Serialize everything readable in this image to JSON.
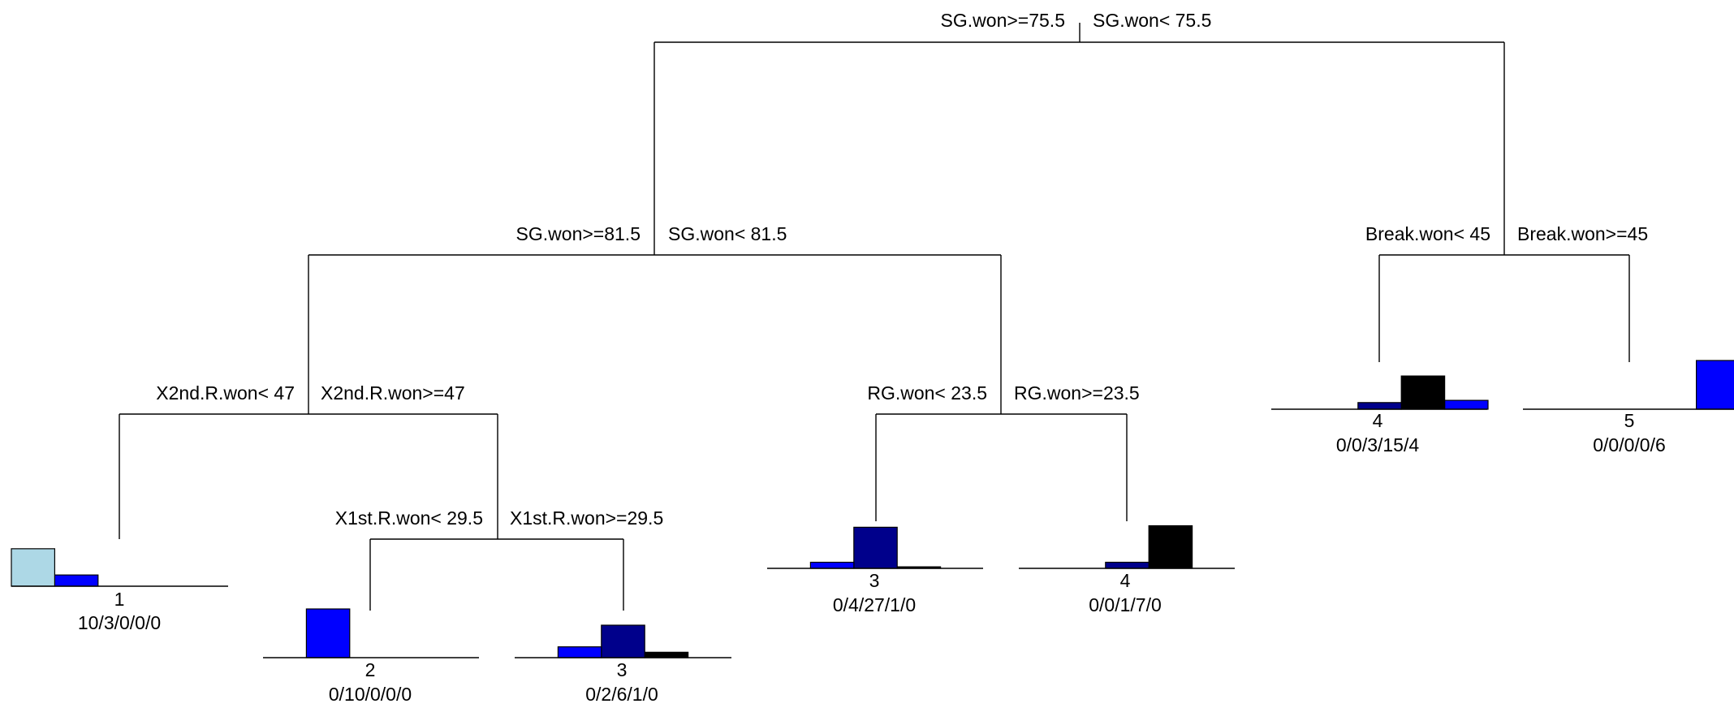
{
  "palette": {
    "class_colors": [
      "#add8e6",
      "#0000ff",
      "#00008b",
      "#000000",
      "#0000ff"
    ],
    "line": "#000000",
    "background": "#ffffff"
  },
  "splits": [
    {
      "id": "root",
      "left_label": "SG.won>=75.5",
      "right_label": "SG.won< 75.5"
    },
    {
      "id": "n2",
      "left_label": "SG.won>=81.5",
      "right_label": "SG.won< 81.5"
    },
    {
      "id": "n3",
      "left_label": "Break.won< 45",
      "right_label": "Break.won>=45"
    },
    {
      "id": "n4",
      "left_label": "X2nd.R.won< 47",
      "right_label": "X2nd.R.won>=47"
    },
    {
      "id": "n5",
      "left_label": "RG.won< 23.5",
      "right_label": "RG.won>=23.5"
    },
    {
      "id": "n9",
      "left_label": "X1st.R.won< 29.5",
      "right_label": "X1st.R.won>=29.5"
    }
  ],
  "leaves": [
    {
      "id": "L1",
      "class": "1",
      "counts_label": "10/3/0/0/0",
      "counts": [
        10,
        3,
        0,
        0,
        0
      ]
    },
    {
      "id": "L2",
      "class": "2",
      "counts_label": "0/10/0/0/0",
      "counts": [
        0,
        10,
        0,
        0,
        0
      ]
    },
    {
      "id": "L3",
      "class": "3",
      "counts_label": "0/2/6/1/0",
      "counts": [
        0,
        2,
        6,
        1,
        0
      ]
    },
    {
      "id": "L4",
      "class": "3",
      "counts_label": "0/4/27/1/0",
      "counts": [
        0,
        4,
        27,
        1,
        0
      ]
    },
    {
      "id": "L5",
      "class": "4",
      "counts_label": "0/0/1/7/0",
      "counts": [
        0,
        0,
        1,
        7,
        0
      ]
    },
    {
      "id": "L6",
      "class": "4",
      "counts_label": "0/0/3/15/4",
      "counts": [
        0,
        0,
        3,
        15,
        4
      ]
    },
    {
      "id": "L7",
      "class": "5",
      "counts_label": "0/0/0/0/6",
      "counts": [
        0,
        0,
        0,
        0,
        6
      ]
    }
  ]
}
